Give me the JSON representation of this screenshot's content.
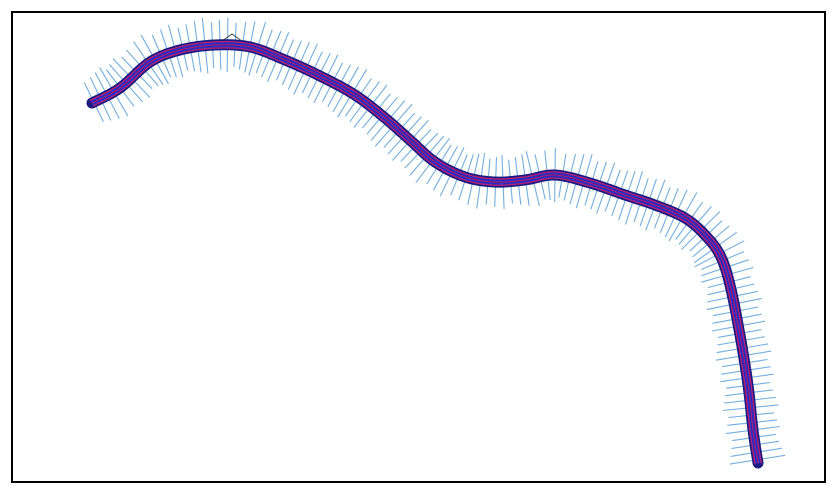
{
  "figure": {
    "frame_color": "#000000",
    "background": "#ffffff"
  },
  "centerline": {
    "color": "#2b2bc0",
    "overlay_color": "#c0227a"
  },
  "cross_sections": {
    "color": "#5aa0d8"
  }
}
